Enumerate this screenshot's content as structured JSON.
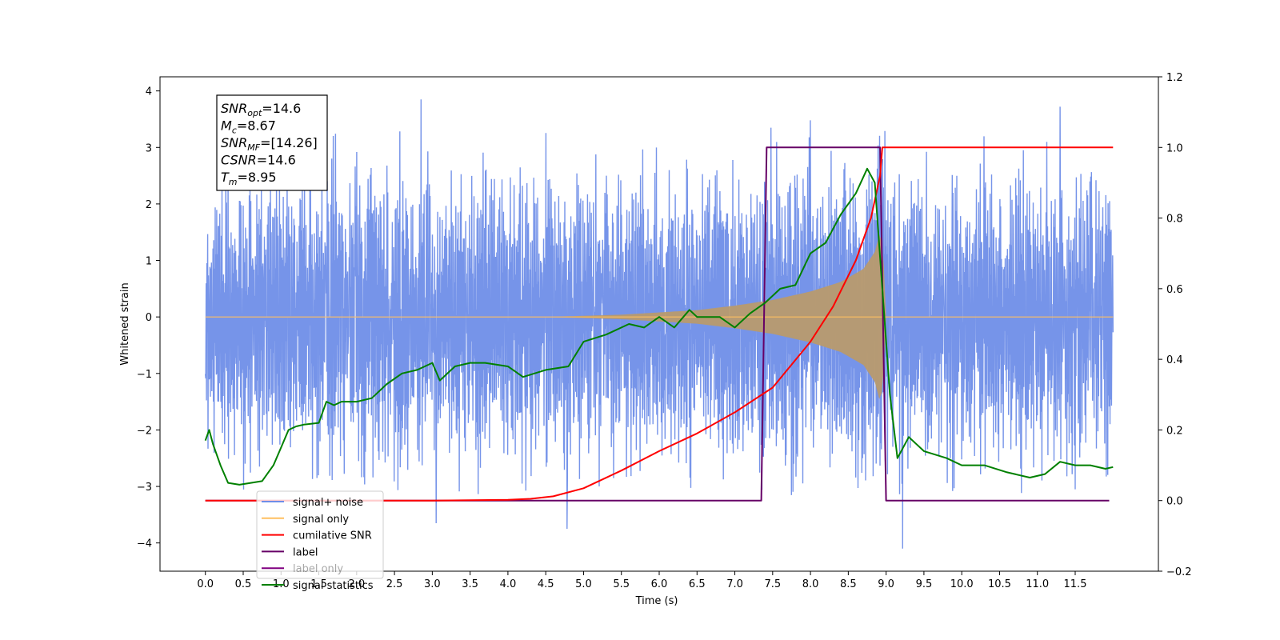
{
  "chart_data": {
    "type": "line",
    "title": "",
    "xlabel": "Time (s)",
    "ylabel_left": "Whitened strain",
    "ylabel_right": "",
    "xlim": [
      -0.6,
      12.6
    ],
    "ylim_left": [
      -4.5,
      4.25
    ],
    "ylim_right": [
      -0.2,
      1.2
    ],
    "x_ticks": [
      0.0,
      0.5,
      1.0,
      1.5,
      2.0,
      2.5,
      3.0,
      3.5,
      4.0,
      4.5,
      5.0,
      5.5,
      6.0,
      6.5,
      7.0,
      7.5,
      8.0,
      8.5,
      9.0,
      9.5,
      10.0,
      10.5,
      11.0,
      11.5
    ],
    "x_tick_labels": [
      "0.0",
      "0.5",
      "1.0",
      "1.5",
      "2.0",
      "2.5",
      "3.0",
      "3.5",
      "4.0",
      "4.5",
      "5.0",
      "5.5",
      "6.0",
      "6.5",
      "7.0",
      "7.5",
      "8.0",
      "8.5",
      "9.0",
      "9.5",
      "10.0",
      "10.5",
      "11.0",
      "11.5"
    ],
    "y_left_ticks": [
      4,
      3,
      2,
      1,
      0,
      -1,
      -2,
      -3,
      -4
    ],
    "y_left_tick_labels": [
      "4",
      "3",
      "2",
      "1",
      "0",
      "−1",
      "−2",
      "−3",
      "−4"
    ],
    "y_right_ticks": [
      1.2,
      1.0,
      0.8,
      0.6,
      0.4,
      0.2,
      0.0,
      -0.2
    ],
    "y_right_tick_labels": [
      "1.2",
      "1.0",
      "0.8",
      "0.6",
      "0.4",
      "0.2",
      "0.0",
      "−0.2"
    ],
    "grid": false,
    "legend_position": "lower-left",
    "legend": [
      {
        "label": "signal+ noise",
        "color": "#6f8ee8"
      },
      {
        "label": "signal only",
        "color": "#ffbf60"
      },
      {
        "label": "cumilative SNR",
        "color": "#ff0000"
      },
      {
        "label": "label",
        "color": "#660066"
      },
      {
        "label": "label only",
        "color": "#800080"
      },
      {
        "label": "signal statistics",
        "color": "#008000"
      }
    ],
    "annotation": [
      {
        "var": "SNR",
        "sub": "opt",
        "value": "=14.6"
      },
      {
        "var": "M",
        "sub": "c",
        "value": "=8.67"
      },
      {
        "var": "SNR",
        "sub": "MF",
        "value": "=[14.26]"
      },
      {
        "var": "CSNR",
        "sub": "",
        "value": "=14.6"
      },
      {
        "var": "T",
        "sub": "m",
        "value": "=8.95"
      }
    ],
    "series": [
      {
        "name": "signal+ noise",
        "axis": "left",
        "color": "#6f8ee8",
        "x_range": [
          0.0,
          12.0
        ],
        "band": 1.5,
        "noise_std": 0.75,
        "peaks": [
          [
            2.85,
            3.85
          ],
          [
            3.05,
            -3.65
          ],
          [
            4.78,
            -3.75
          ],
          [
            7.48,
            3.35
          ],
          [
            8.0,
            3.48
          ],
          [
            9.22,
            -4.1
          ],
          [
            11.3,
            3.72
          ],
          [
            11.5,
            -3.05
          ]
        ]
      },
      {
        "name": "signal only",
        "axis": "left",
        "color": "#ffbf60",
        "envelope": {
          "x": [
            0.0,
            4.5,
            5.5,
            6.5,
            7.0,
            7.5,
            8.0,
            8.4,
            8.7,
            8.85,
            8.92,
            8.96,
            8.99,
            9.0,
            12.0
          ],
          "amp": [
            0.0,
            0.0,
            0.04,
            0.12,
            0.2,
            0.3,
            0.45,
            0.62,
            0.85,
            1.15,
            1.5,
            1.2,
            0.3,
            0.0,
            0.0
          ]
        }
      },
      {
        "name": "cumilative SNR",
        "axis": "right",
        "color": "#ff0000",
        "x": [
          0.0,
          3.0,
          4.0,
          4.3,
          4.6,
          5.0,
          5.5,
          6.0,
          6.5,
          7.0,
          7.5,
          8.0,
          8.3,
          8.6,
          8.8,
          8.92,
          8.95,
          12.0
        ],
        "y": [
          0.0,
          0.0,
          0.002,
          0.005,
          0.012,
          0.035,
          0.085,
          0.14,
          0.19,
          0.25,
          0.32,
          0.45,
          0.55,
          0.68,
          0.8,
          0.92,
          1.0,
          1.0
        ]
      },
      {
        "name": "label",
        "axis": "right",
        "color": "#660066",
        "x": [
          0.0,
          7.35,
          7.42,
          8.92,
          9.0,
          11.95
        ],
        "y": [
          0.0,
          0.0,
          1.0,
          1.0,
          0.0,
          0.0
        ]
      },
      {
        "name": "signal statistics",
        "axis": "right",
        "color": "#008000",
        "x": [
          0.0,
          0.05,
          0.1,
          0.2,
          0.3,
          0.45,
          0.6,
          0.75,
          0.9,
          1.0,
          1.1,
          1.2,
          1.3,
          1.5,
          1.6,
          1.7,
          1.8,
          2.0,
          2.2,
          2.4,
          2.6,
          2.8,
          3.0,
          3.1,
          3.3,
          3.5,
          3.7,
          4.0,
          4.2,
          4.5,
          4.8,
          5.0,
          5.3,
          5.6,
          5.8,
          6.0,
          6.2,
          6.4,
          6.5,
          6.8,
          7.0,
          7.2,
          7.4,
          7.6,
          7.8,
          8.0,
          8.2,
          8.4,
          8.6,
          8.75,
          8.85,
          8.95,
          9.05,
          9.15,
          9.3,
          9.5,
          9.8,
          10.0,
          10.3,
          10.6,
          10.9,
          11.1,
          11.3,
          11.5,
          11.7,
          11.9,
          12.0
        ],
        "y": [
          0.17,
          0.2,
          0.16,
          0.1,
          0.05,
          0.045,
          0.05,
          0.055,
          0.1,
          0.15,
          0.2,
          0.21,
          0.215,
          0.22,
          0.28,
          0.27,
          0.28,
          0.28,
          0.29,
          0.33,
          0.36,
          0.37,
          0.39,
          0.34,
          0.38,
          0.39,
          0.39,
          0.38,
          0.35,
          0.37,
          0.38,
          0.45,
          0.47,
          0.5,
          0.49,
          0.52,
          0.49,
          0.54,
          0.52,
          0.52,
          0.49,
          0.53,
          0.56,
          0.6,
          0.61,
          0.7,
          0.73,
          0.81,
          0.87,
          0.94,
          0.9,
          0.6,
          0.3,
          0.12,
          0.18,
          0.14,
          0.12,
          0.1,
          0.1,
          0.08,
          0.065,
          0.075,
          0.11,
          0.1,
          0.1,
          0.09,
          0.095
        ]
      }
    ]
  }
}
